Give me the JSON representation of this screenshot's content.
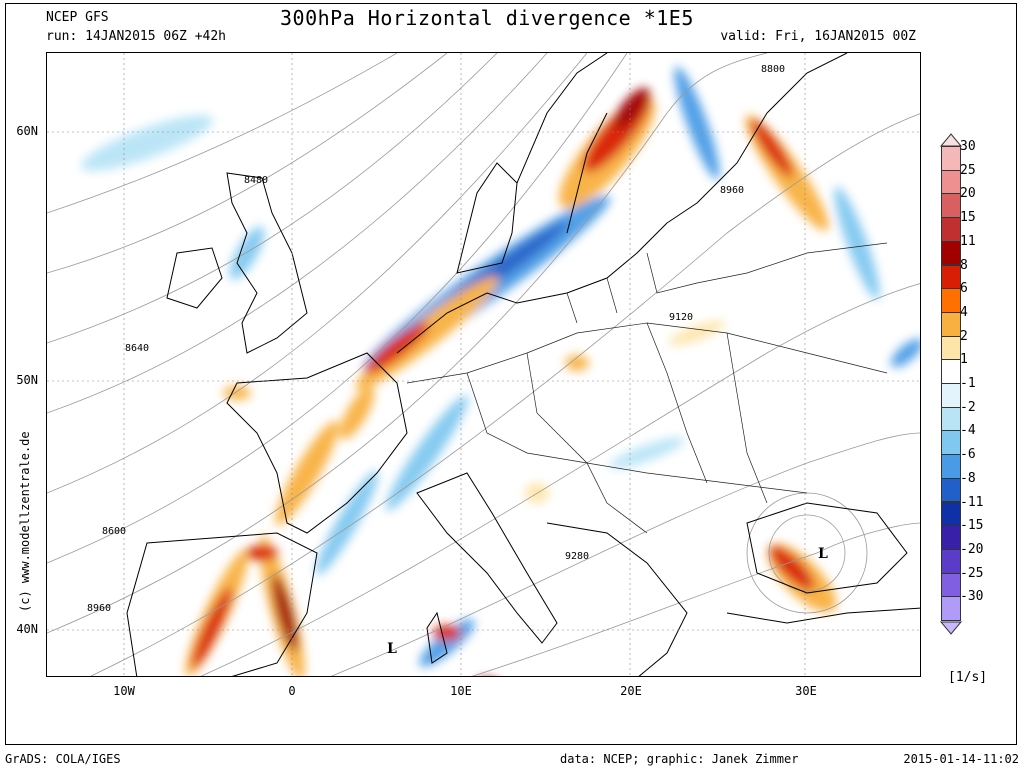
{
  "header": {
    "model": "NCEP GFS",
    "title": "300hPa Horizontal divergence *1E5",
    "run": "run: 14JAN2015 06Z +42h",
    "valid": "valid: Fri, 16JAN2015 00Z"
  },
  "axes": {
    "lon_labels": [
      "10W",
      "0",
      "10E",
      "20E",
      "30E"
    ],
    "lat_labels": [
      "60N",
      "50N",
      "40N"
    ]
  },
  "side_credit": "(c) www.modellzentrale.de",
  "colorbar": {
    "labels": [
      "30",
      "25",
      "20",
      "15",
      "11",
      "8",
      "6",
      "4",
      "2",
      "1",
      "-1",
      "-2",
      "-4",
      "-6",
      "-8",
      "-11",
      "-15",
      "-20",
      "-25",
      "-30"
    ],
    "colors": [
      "#f4b8b8",
      "#ee9090",
      "#d86060",
      "#c03030",
      "#a00000",
      "#d81e05",
      "#ff7000",
      "#f8b040",
      "#fde4a8",
      "#ffffff",
      "#e4f4fc",
      "#b8e4f6",
      "#80c8f0",
      "#4a9be6",
      "#2060c8",
      "#1030a8",
      "#3820a8",
      "#5a3cc8",
      "#8060e0",
      "#b09cf8"
    ],
    "unit": "[1/s]"
  },
  "map": {
    "contour_labels": [
      "8480",
      "8640",
      "8600",
      "8960",
      "8800",
      "8960",
      "9120",
      "9280"
    ],
    "low_markers": [
      "L",
      "L"
    ]
  },
  "footer": {
    "left": "GrADS: COLA/IGES",
    "center": "data: NCEP; graphic: Janek Zimmer",
    "right": "2015-01-14-11:02"
  }
}
